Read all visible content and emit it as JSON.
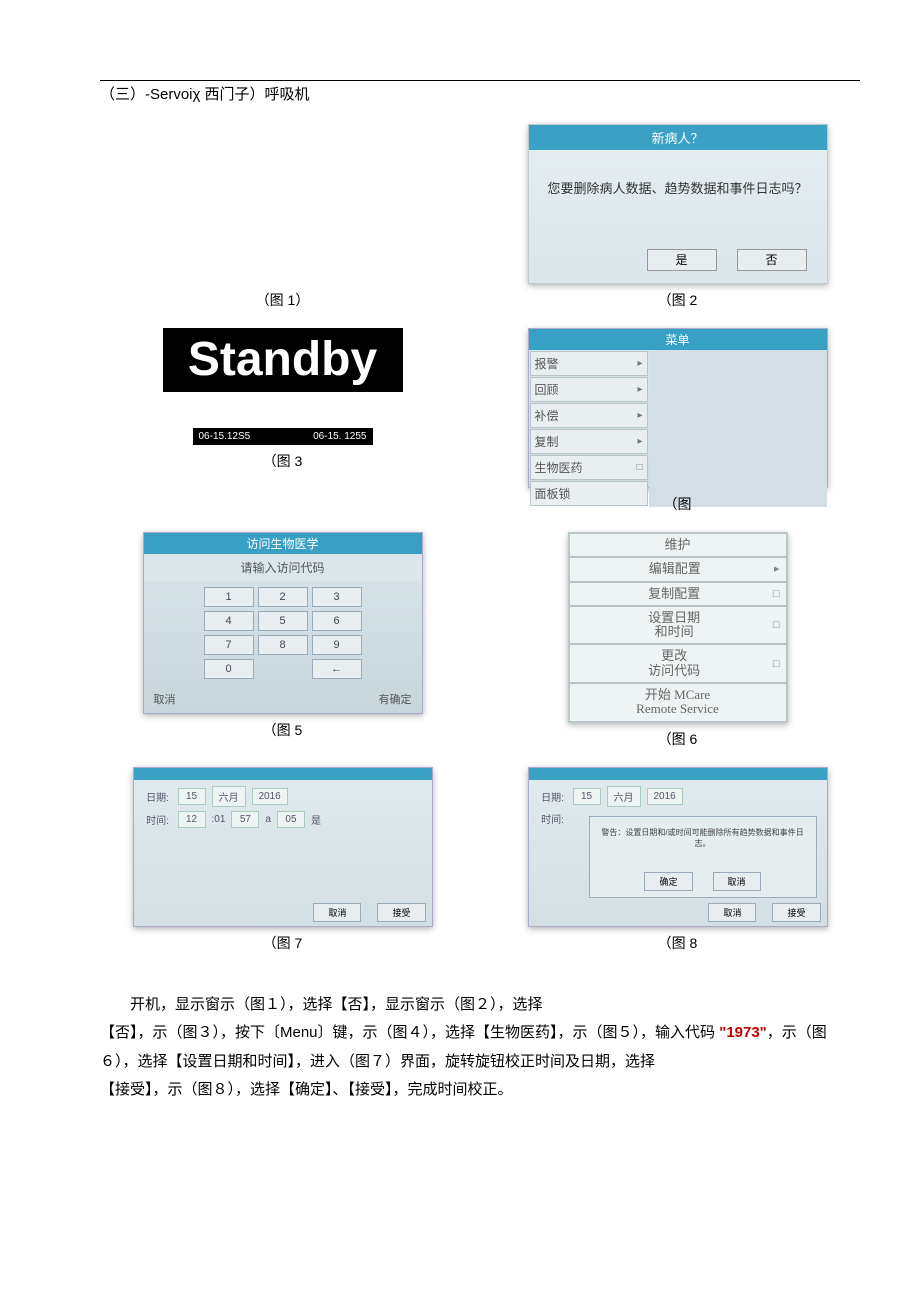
{
  "title": "（三）-Servoiχ 西门子）呼吸机",
  "captions": {
    "fig1": "（图 1）",
    "fig2": "（图 2",
    "fig3": "（图 3",
    "fig4": "（图",
    "fig5": "（图 5",
    "fig6": "（图 6",
    "fig7": "（图 7",
    "fig8": "（图 8"
  },
  "fig2": {
    "title": "新病人？",
    "text": "您要删除病人数据、趋势数据和事件日志吗？",
    "btn_yes": "是",
    "btn_no": "否"
  },
  "fig3": {
    "standby": "Standby",
    "time1": "06-15.12S5",
    "time2": "06-15. 1255"
  },
  "fig4": {
    "title": "菜单",
    "items": [
      {
        "label": "报警",
        "arrow": "▸"
      },
      {
        "label": "回顾",
        "arrow": "▸"
      },
      {
        "label": "补偿",
        "arrow": "▸"
      },
      {
        "label": "复制",
        "arrow": "▸"
      },
      {
        "label": "生物医药",
        "arrow": "□"
      },
      {
        "label": "面板锁",
        "arrow": ""
      }
    ]
  },
  "fig5": {
    "title": "访问生物医学",
    "subtitle": "请输入访问代码",
    "keys": [
      "1",
      "2",
      "3",
      "4",
      "5",
      "6",
      "7",
      "8",
      "9",
      "0",
      "",
      "←"
    ],
    "cancel": "取消",
    "ok": "有确定"
  },
  "fig6": {
    "items": [
      {
        "label": "维护",
        "arrow": ""
      },
      {
        "label": "编辑配置",
        "arrow": "▸"
      },
      {
        "label": "复制配置",
        "arrow": "□"
      },
      {
        "label": "设置日期\n和时间",
        "arrow": "□"
      },
      {
        "label": "更改\n访问代码",
        "arrow": "□"
      },
      {
        "label": "开始 MCare\nRemote Service",
        "arrow": ""
      }
    ]
  },
  "fig7": {
    "label_date": "日期:",
    "label_time": "时间:",
    "date_fields": [
      "15",
      "六月",
      "2016"
    ],
    "time_fields": [
      "12",
      ":01",
      "57",
      "a",
      "05",
      "是"
    ],
    "btn_cancel": "取消",
    "btn_accept": "接受"
  },
  "fig8": {
    "label_date": "日期:",
    "label_time": "时间:",
    "date_fields": [
      "15",
      "六月",
      "2016"
    ],
    "warning": "警告：设置日期和/或时间可能删除所有趋势数据和事件日志。",
    "btn_ok": "确定",
    "btn_cancel": "取消",
    "btn_cancel2": "取消",
    "btn_accept": "接受"
  },
  "body": {
    "p1": "开机，显示窗示（图１），选择【否】，显示窗示（图２），选择",
    "p2_a": "【否】，示（图３），按下〔Menu〕键，示（图４），选择【生物医药】，示（图５），输入代码",
    "p2_code": "\"1973\"",
    "p2_b": "，示（图６），选择【设置日期和时间】，进入（图７）界面，旋转旋钮校正时间及日期，选择",
    "p3": "【接受】，示（图８），选择【确定】、【接受】，完成时间校正。"
  }
}
